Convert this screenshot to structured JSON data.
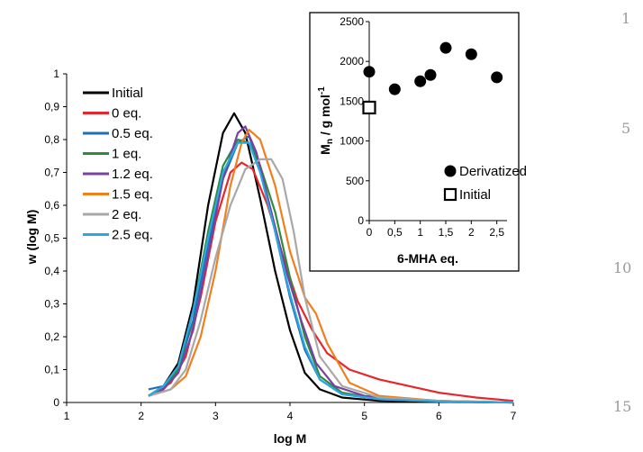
{
  "line_numbers": [
    "1",
    "5",
    "10",
    "15"
  ],
  "chart_data": [
    {
      "type": "line",
      "title": "",
      "xlabel": "log M",
      "ylabel": "w (log M)",
      "xlim": [
        1,
        7
      ],
      "ylim": [
        0,
        1
      ],
      "x_ticks": [
        "1",
        "2",
        "3",
        "4",
        "5",
        "6",
        "7"
      ],
      "y_ticks": [
        "0",
        "0,1",
        "0,2",
        "0,3",
        "0,4",
        "0,5",
        "0,6",
        "0,7",
        "0,8",
        "0,9",
        "1"
      ],
      "legend": "top-left",
      "grid": false,
      "series": [
        {
          "name": "Initial",
          "color": "#000000",
          "points": [
            [
              2.1,
              0.02
            ],
            [
              2.3,
              0.05
            ],
            [
              2.5,
              0.12
            ],
            [
              2.7,
              0.3
            ],
            [
              2.9,
              0.6
            ],
            [
              3.1,
              0.82
            ],
            [
              3.25,
              0.88
            ],
            [
              3.4,
              0.82
            ],
            [
              3.6,
              0.62
            ],
            [
              3.8,
              0.4
            ],
            [
              4.0,
              0.22
            ],
            [
              4.2,
              0.09
            ],
            [
              4.4,
              0.04
            ],
            [
              4.7,
              0.015
            ],
            [
              5.2,
              0.005
            ],
            [
              6.0,
              0.002
            ],
            [
              7.0,
              0.0
            ]
          ]
        },
        {
          "name": "0 eq.",
          "color": "#e8262a",
          "points": [
            [
              2.1,
              0.02
            ],
            [
              2.4,
              0.06
            ],
            [
              2.6,
              0.14
            ],
            [
              2.8,
              0.32
            ],
            [
              3.0,
              0.55
            ],
            [
              3.2,
              0.7
            ],
            [
              3.35,
              0.73
            ],
            [
              3.5,
              0.71
            ],
            [
              3.7,
              0.6
            ],
            [
              3.9,
              0.45
            ],
            [
              4.1,
              0.31
            ],
            [
              4.3,
              0.22
            ],
            [
              4.5,
              0.15
            ],
            [
              4.8,
              0.1
            ],
            [
              5.2,
              0.07
            ],
            [
              5.6,
              0.05
            ],
            [
              6.0,
              0.03
            ],
            [
              6.5,
              0.015
            ],
            [
              7.0,
              0.005
            ]
          ]
        },
        {
          "name": "0.5 eq.",
          "color": "#1f6fb5",
          "points": [
            [
              2.1,
              0.04
            ],
            [
              2.3,
              0.05
            ],
            [
              2.5,
              0.1
            ],
            [
              2.7,
              0.25
            ],
            [
              2.9,
              0.48
            ],
            [
              3.1,
              0.68
            ],
            [
              3.3,
              0.79
            ],
            [
              3.45,
              0.81
            ],
            [
              3.6,
              0.72
            ],
            [
              3.8,
              0.52
            ],
            [
              4.0,
              0.32
            ],
            [
              4.2,
              0.16
            ],
            [
              4.4,
              0.07
            ],
            [
              4.7,
              0.025
            ],
            [
              5.2,
              0.01
            ],
            [
              6.0,
              0.004
            ],
            [
              7.0,
              0.0
            ]
          ]
        },
        {
          "name": "1 eq.",
          "color": "#2e8b3e",
          "points": [
            [
              2.1,
              0.02
            ],
            [
              2.3,
              0.04
            ],
            [
              2.5,
              0.1
            ],
            [
              2.7,
              0.28
            ],
            [
              2.9,
              0.52
            ],
            [
              3.1,
              0.72
            ],
            [
              3.3,
              0.8
            ],
            [
              3.45,
              0.79
            ],
            [
              3.6,
              0.72
            ],
            [
              3.8,
              0.58
            ],
            [
              4.0,
              0.38
            ],
            [
              4.2,
              0.2
            ],
            [
              4.4,
              0.08
            ],
            [
              4.7,
              0.03
            ],
            [
              5.2,
              0.01
            ],
            [
              6.0,
              0.004
            ],
            [
              7.0,
              0.0
            ]
          ]
        },
        {
          "name": "1.2 eq.",
          "color": "#7b3fa0",
          "points": [
            [
              2.1,
              0.02
            ],
            [
              2.3,
              0.04
            ],
            [
              2.5,
              0.09
            ],
            [
              2.7,
              0.22
            ],
            [
              2.9,
              0.45
            ],
            [
              3.1,
              0.68
            ],
            [
              3.3,
              0.82
            ],
            [
              3.4,
              0.84
            ],
            [
              3.55,
              0.76
            ],
            [
              3.75,
              0.58
            ],
            [
              3.95,
              0.4
            ],
            [
              4.15,
              0.25
            ],
            [
              4.35,
              0.12
            ],
            [
              4.6,
              0.05
            ],
            [
              5.0,
              0.02
            ],
            [
              6.0,
              0.005
            ],
            [
              7.0,
              0.0
            ]
          ]
        },
        {
          "name": "1.5 eq.",
          "color": "#f07f1e",
          "points": [
            [
              2.1,
              0.02
            ],
            [
              2.4,
              0.04
            ],
            [
              2.6,
              0.08
            ],
            [
              2.8,
              0.2
            ],
            [
              3.0,
              0.4
            ],
            [
              3.2,
              0.66
            ],
            [
              3.35,
              0.79
            ],
            [
              3.45,
              0.83
            ],
            [
              3.6,
              0.8
            ],
            [
              3.8,
              0.66
            ],
            [
              4.0,
              0.46
            ],
            [
              4.2,
              0.32
            ],
            [
              4.35,
              0.27
            ],
            [
              4.5,
              0.18
            ],
            [
              4.8,
              0.06
            ],
            [
              5.2,
              0.02
            ],
            [
              6.0,
              0.005
            ],
            [
              7.0,
              0.0
            ]
          ]
        },
        {
          "name": "2 eq.",
          "color": "#a8a8a8",
          "points": [
            [
              2.1,
              0.02
            ],
            [
              2.4,
              0.04
            ],
            [
              2.6,
              0.1
            ],
            [
              2.8,
              0.25
            ],
            [
              3.0,
              0.44
            ],
            [
              3.2,
              0.6
            ],
            [
              3.4,
              0.71
            ],
            [
              3.6,
              0.74
            ],
            [
              3.75,
              0.74
            ],
            [
              3.9,
              0.68
            ],
            [
              4.05,
              0.52
            ],
            [
              4.2,
              0.32
            ],
            [
              4.4,
              0.14
            ],
            [
              4.7,
              0.05
            ],
            [
              5.2,
              0.015
            ],
            [
              6.0,
              0.005
            ],
            [
              7.0,
              0.0
            ]
          ]
        },
        {
          "name": "2.5 eq.",
          "color": "#29a9e0",
          "points": [
            [
              2.1,
              0.02
            ],
            [
              2.3,
              0.05
            ],
            [
              2.5,
              0.11
            ],
            [
              2.7,
              0.28
            ],
            [
              2.9,
              0.5
            ],
            [
              3.1,
              0.7
            ],
            [
              3.3,
              0.79
            ],
            [
              3.45,
              0.79
            ],
            [
              3.6,
              0.7
            ],
            [
              3.8,
              0.52
            ],
            [
              4.0,
              0.33
            ],
            [
              4.2,
              0.17
            ],
            [
              4.4,
              0.07
            ],
            [
              4.7,
              0.025
            ],
            [
              5.2,
              0.01
            ],
            [
              6.0,
              0.003
            ],
            [
              7.0,
              0.0
            ]
          ]
        }
      ]
    },
    {
      "type": "scatter",
      "title": "",
      "xlabel": "6-MHA eq.",
      "ylabel_main": "M",
      "ylabel_sub": "n",
      "ylabel_rest": " / g mol",
      "ylabel_sup": "-1",
      "xlim": [
        0,
        2.7
      ],
      "ylim": [
        0,
        2500
      ],
      "x_ticks": [
        [
          "0",
          0
        ],
        [
          "0,5",
          0.5
        ],
        [
          "1",
          1
        ],
        [
          "1,5",
          1.5
        ],
        [
          "2",
          2
        ],
        [
          "2,5",
          2.5
        ]
      ],
      "y_ticks": [
        "0",
        "500",
        "1000",
        "1500",
        "2000",
        "2500"
      ],
      "legend": "bottom-right",
      "series": [
        {
          "name": "Derivatized",
          "marker": "filled-circle",
          "x": [
            0,
            0.5,
            1,
            1.2,
            1.5,
            2,
            2.5
          ],
          "y": [
            1870,
            1650,
            1750,
            1830,
            2170,
            2090,
            1800
          ]
        },
        {
          "name": "Initial",
          "marker": "open-square",
          "x": [
            0
          ],
          "y": [
            1420
          ]
        }
      ]
    }
  ]
}
